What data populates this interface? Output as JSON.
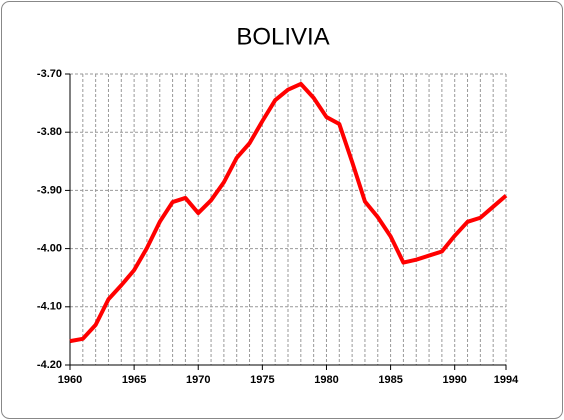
{
  "chart_data": {
    "type": "line",
    "title": "BOLIVIA",
    "x": [
      1960,
      1961,
      1962,
      1963,
      1964,
      1965,
      1966,
      1967,
      1968,
      1969,
      1970,
      1971,
      1972,
      1973,
      1974,
      1975,
      1976,
      1977,
      1978,
      1979,
      1980,
      1981,
      1982,
      1983,
      1984,
      1985,
      1986,
      1987,
      1988,
      1989,
      1990,
      1991,
      1992,
      1993,
      1994
    ],
    "series": [
      {
        "name": "BOLIVIA",
        "color": "#ff0000",
        "values": [
          -4.159,
          -4.155,
          -4.131,
          -4.087,
          -4.063,
          -4.037,
          -3.999,
          -3.954,
          -3.92,
          -3.913,
          -3.939,
          -3.917,
          -3.886,
          -3.844,
          -3.819,
          -3.781,
          -3.745,
          -3.727,
          -3.717,
          -3.741,
          -3.774,
          -3.786,
          -3.851,
          -3.919,
          -3.946,
          -3.979,
          -4.024,
          -4.019,
          -4.012,
          -4.005,
          -3.978,
          -3.954,
          -3.947,
          -3.928,
          -3.909
        ]
      }
    ],
    "xlim": [
      1960,
      1994
    ],
    "xticks": [
      1960,
      1965,
      1970,
      1975,
      1980,
      1985,
      1990,
      1994
    ],
    "ylim": [
      -4.2,
      -3.7
    ],
    "yticks": [
      {
        "value": -4.2,
        "label": "-4.20"
      },
      {
        "value": -4.1,
        "label": "-4.10"
      },
      {
        "value": -4.0,
        "label": "-4.00"
      },
      {
        "value": -3.9,
        "label": "-3.90"
      },
      {
        "value": -3.8,
        "label": "-3.80"
      },
      {
        "value": -3.7,
        "label": "-3.70"
      }
    ],
    "grid": true
  }
}
